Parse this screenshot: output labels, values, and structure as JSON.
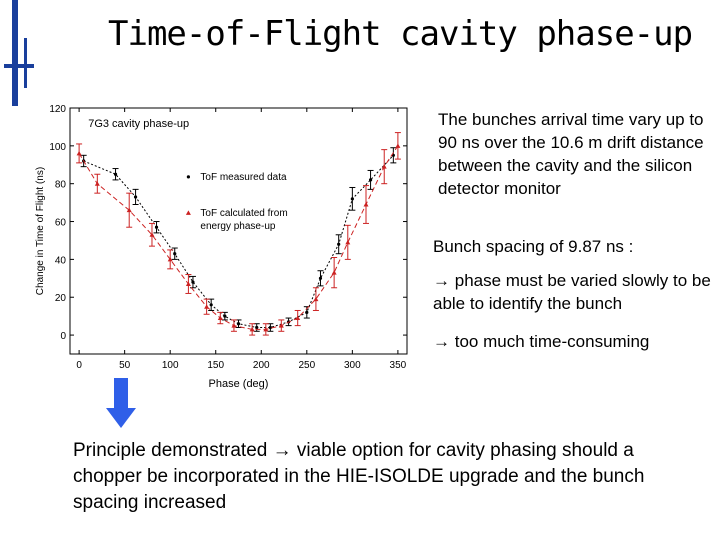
{
  "slide": {
    "title": "Time-of-Flight cavity phase-up"
  },
  "notes": {
    "arrival": "The bunches arrival time vary up to 90 ns over the 10.6 m drift distance between the cavity and the silicon detector monitor",
    "spacing": "Bunch spacing of 9.87 ns :",
    "bullet1": "phase must be varied slowly to be able to identify the bunch",
    "bullet2": "too much time-consuming",
    "arrow_glyph": "→",
    "conclusion_part1": "Principle demonstrated",
    "conclusion_part2": "viable option for cavity phasing should a chopper be incorporated in the HIE-ISOLDE upgrade and the bunch spacing increased"
  },
  "colors": {
    "title_bar": "#1a3f9c",
    "accent_arrow": "#2f5fe8",
    "measured": "#000000",
    "calculated": "#cc2222"
  },
  "icons": [
    "down-arrow-icon",
    "right-arrow-icon"
  ],
  "chart_data": {
    "type": "line",
    "title": "7G3 cavity phase-up",
    "xlabel": "Phase (deg)",
    "ylabel": "Change in Time of Flight (ns)",
    "xlim": [
      -10,
      360
    ],
    "ylim": [
      -10,
      120
    ],
    "xticks": [
      0,
      50,
      100,
      150,
      200,
      250,
      300,
      350
    ],
    "yticks": [
      0,
      20,
      40,
      60,
      80,
      100,
      120
    ],
    "grid": false,
    "legend_position": "upper-center",
    "series": [
      {
        "name": "ToF measured data",
        "style": "dotted-black-errorbars",
        "x": [
          5,
          40,
          62,
          85,
          105,
          125,
          145,
          160,
          175,
          195,
          210,
          230,
          250,
          265,
          285,
          300,
          320,
          345
        ],
        "y": [
          92,
          85,
          73,
          57,
          43,
          28,
          16,
          10,
          6,
          4,
          4,
          7,
          12,
          30,
          48,
          72,
          82,
          95
        ],
        "err": [
          3,
          3,
          4,
          3,
          3,
          3,
          3,
          2,
          2,
          2,
          2,
          2,
          3,
          4,
          5,
          6,
          5,
          4
        ]
      },
      {
        "name": "ToF calculated from energy phase-up",
        "style": "dashed-red-errorbars",
        "x": [
          0,
          20,
          55,
          80,
          100,
          120,
          140,
          155,
          170,
          190,
          205,
          222,
          240,
          260,
          280,
          295,
          315,
          335,
          350
        ],
        "y": [
          96,
          80,
          66,
          53,
          40,
          27,
          15,
          9,
          5,
          3,
          3,
          5,
          9,
          19,
          33,
          49,
          69,
          89,
          100
        ],
        "err": [
          5,
          5,
          9,
          6,
          5,
          5,
          4,
          3,
          3,
          3,
          3,
          3,
          4,
          6,
          8,
          9,
          10,
          9,
          7
        ]
      }
    ]
  }
}
